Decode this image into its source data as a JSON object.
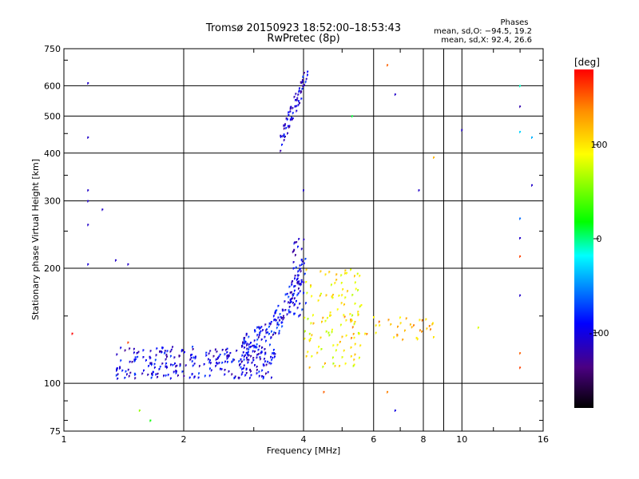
{
  "chart_data": {
    "type": "scatter",
    "title": "Tromsø 20150923 18:52:00–18:53:43",
    "subtitle": "RwPretec (8p)",
    "stats_title": "Phases",
    "stats_line1": "mean, sd,O: −94.5, 19.2",
    "stats_line2": "mean, sd,X:  92.4, 26.6",
    "xlabel": "Frequency [MHz]",
    "ylabel": "Stationary phase Virtual Height [km]",
    "xscale": "log",
    "yscale": "log",
    "xlim": [
      1,
      16
    ],
    "ylim": [
      75,
      750
    ],
    "x_ticks": [
      1,
      2,
      4,
      6,
      8,
      10,
      16
    ],
    "y_ticks": [
      75,
      100,
      200,
      300,
      400,
      500,
      600,
      750
    ],
    "grid": true,
    "colorbar": {
      "label": "[deg]",
      "range": [
        -180,
        180
      ],
      "ticks": [
        100,
        0,
        -100
      ],
      "colors": [
        "#000000",
        "#4b0082",
        "#0000ff",
        "#00ffff",
        "#00ff00",
        "#ffff00",
        "#ff8c00",
        "#ff0000"
      ]
    },
    "traces": [
      {
        "desc": "O-mode E/F1 band",
        "xmin": 1.35,
        "xmax": 3.4,
        "hmin": 103,
        "hmax": 125,
        "phase": -100,
        "count": 260
      },
      {
        "desc": "O-mode F trace rising",
        "xmin": 2.8,
        "xmax": 4.0,
        "hmin": 125,
        "hmax": 200,
        "phase": -95,
        "count": 160
      },
      {
        "desc": "O-mode cusp",
        "x": 3.9,
        "hmin": 150,
        "hmax": 240,
        "phase": -100,
        "count": 40
      },
      {
        "desc": "O-mode high echo",
        "xmin": 3.5,
        "xmax": 4.1,
        "hmin": 430,
        "hmax": 650,
        "phase": -105,
        "count": 70
      },
      {
        "desc": "X-mode F trace",
        "xmin": 4.0,
        "xmax": 5.6,
        "hmin": 110,
        "hmax": 200,
        "phase": 95,
        "count": 110
      },
      {
        "desc": "X-mode mid band",
        "xmin": 5.0,
        "xmax": 9.0,
        "hmin": 130,
        "hmax": 150,
        "phase": 120,
        "count": 45
      }
    ],
    "isolated_points": [
      [
        1.15,
        610,
        -110
      ],
      [
        1.15,
        440,
        -110
      ],
      [
        1.15,
        320,
        -110
      ],
      [
        1.15,
        300,
        -110
      ],
      [
        1.15,
        260,
        -110
      ],
      [
        1.15,
        205,
        -105
      ],
      [
        1.25,
        285,
        -110
      ],
      [
        1.35,
        210,
        -110
      ],
      [
        1.45,
        205,
        -110
      ],
      [
        1.05,
        135,
        180
      ],
      [
        1.45,
        128,
        160
      ],
      [
        1.55,
        85,
        60
      ],
      [
        1.65,
        80,
        20
      ],
      [
        4.0,
        320,
        -110
      ],
      [
        6.5,
        680,
        150
      ],
      [
        6.8,
        570,
        -110
      ],
      [
        7.8,
        320,
        -110
      ],
      [
        10.0,
        460,
        -110
      ],
      [
        14.0,
        600,
        -10
      ],
      [
        14.0,
        530,
        -120
      ],
      [
        14.0,
        455,
        -30
      ],
      [
        15.0,
        440,
        -40
      ],
      [
        15.0,
        330,
        -110
      ],
      [
        14.0,
        270,
        -60
      ],
      [
        14.0,
        240,
        -110
      ],
      [
        14.0,
        215,
        160
      ],
      [
        14.0,
        170,
        -110
      ],
      [
        14.0,
        120,
        150
      ],
      [
        14.0,
        110,
        160
      ],
      [
        11.0,
        140,
        80
      ],
      [
        8.5,
        390,
        120
      ],
      [
        6.5,
        95,
        140
      ],
      [
        6.8,
        85,
        -100
      ],
      [
        4.5,
        95,
        150
      ],
      [
        5.3,
        500,
        10
      ]
    ]
  }
}
